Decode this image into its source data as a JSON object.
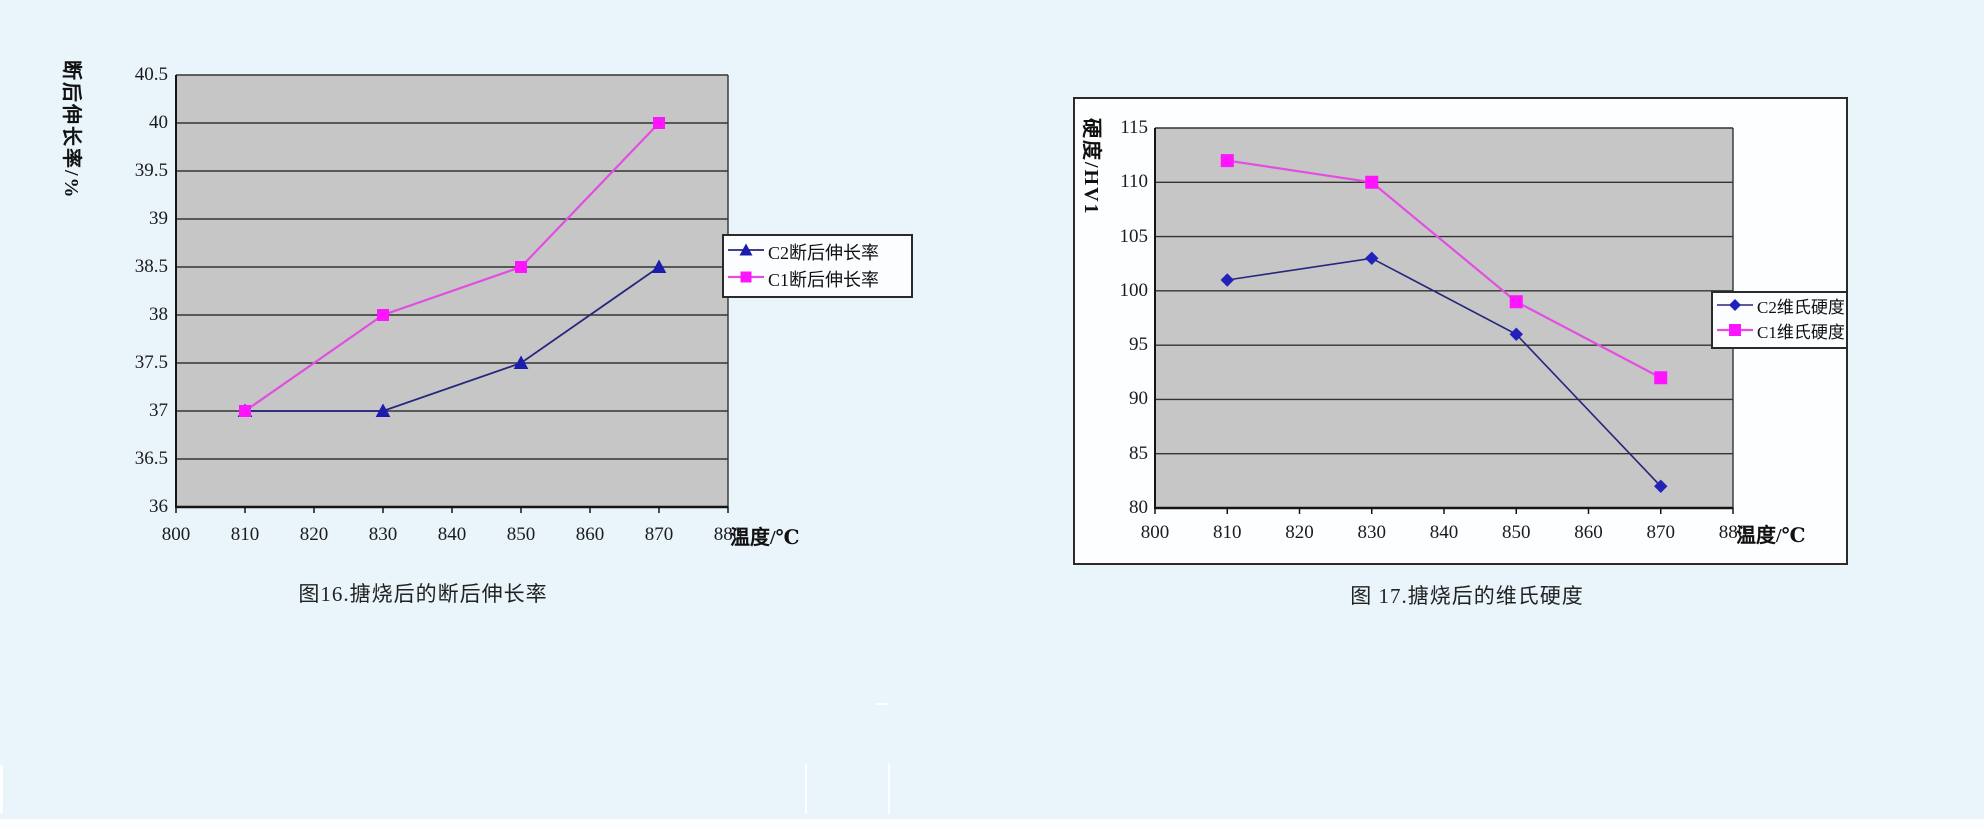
{
  "page": {
    "background_color": "#e9f4fb",
    "bottom_strip_color": "#fbfdfe"
  },
  "chart_data": [
    {
      "id": "fig16",
      "type": "line",
      "title_caption": "图16.搪烧后的断后伸长率",
      "xlabel": "温度/℃",
      "ylabel": "断后伸长率/%",
      "x": [
        810,
        830,
        850,
        870
      ],
      "x_axis": {
        "min": 800,
        "max": 880,
        "tick_step": 10,
        "tick_labels": [
          "800",
          "810",
          "820",
          "830",
          "840",
          "850",
          "860",
          "870",
          "880"
        ]
      },
      "y_axis": {
        "min": 36,
        "max": 40.5,
        "tick_step": 0.5,
        "tick_labels": [
          "36",
          "36.5",
          "37",
          "37.5",
          "38",
          "38.5",
          "39",
          "39.5",
          "40",
          "40.5"
        ]
      },
      "series": [
        {
          "name": "C2断后伸长率",
          "values": [
            37,
            37,
            37.5,
            38.5
          ],
          "color": "#26267e",
          "marker": "triangle",
          "marker_color": "#1c1cae",
          "marker_size": 13,
          "line_width": 1.8
        },
        {
          "name": "C1断后伸长率",
          "values": [
            37,
            38,
            38.5,
            40
          ],
          "color": "#e14fe1",
          "marker": "square",
          "marker_color": "#ff14ff",
          "marker_size": 11,
          "line_width": 2.2
        }
      ],
      "legend_position": "right",
      "plot_bg": "#c6c6c6",
      "grid": true,
      "grid_color": "#333333",
      "axis_color": "#151515"
    },
    {
      "id": "fig17",
      "type": "line",
      "title_caption": "图 17.搪烧后的维氏硬度",
      "xlabel": "温度/℃",
      "ylabel": "硬度/HV1",
      "x": [
        810,
        830,
        850,
        870
      ],
      "x_axis": {
        "min": 800,
        "max": 880,
        "tick_step": 10,
        "tick_labels": [
          "800",
          "810",
          "820",
          "830",
          "840",
          "850",
          "860",
          "870",
          "880"
        ]
      },
      "y_axis": {
        "min": 80,
        "max": 115,
        "tick_step": 5,
        "tick_labels": [
          "80",
          "85",
          "90",
          "95",
          "100",
          "105",
          "110",
          "115"
        ]
      },
      "series": [
        {
          "name": "C2维氏硬度",
          "values": [
            101,
            103,
            96,
            82
          ],
          "color": "#26267e",
          "marker": "diamond",
          "marker_color": "#2222bb",
          "marker_size": 12,
          "line_width": 1.6
        },
        {
          "name": "C1维氏硬度",
          "values": [
            112,
            110,
            99,
            92
          ],
          "color": "#e14fe1",
          "marker": "square",
          "marker_color": "#ff14ff",
          "marker_size": 12,
          "line_width": 2.2
        }
      ],
      "legend_position": "right",
      "plot_bg": "#c6c6c6",
      "frame_bg": "#fdfeff",
      "grid": true,
      "grid_color": "#333333",
      "axis_color": "#151515"
    }
  ]
}
